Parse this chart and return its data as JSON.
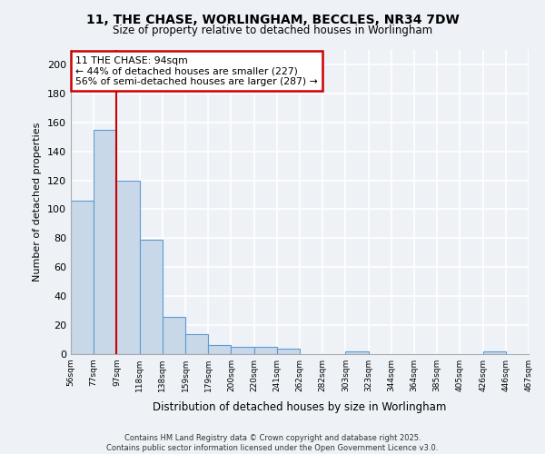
{
  "title_line1": "11, THE CHASE, WORLINGHAM, BECCLES, NR34 7DW",
  "title_line2": "Size of property relative to detached houses in Worlingham",
  "xlabel": "Distribution of detached houses by size in Worlingham",
  "ylabel": "Number of detached properties",
  "bar_values": [
    106,
    155,
    120,
    79,
    26,
    14,
    6,
    5,
    5,
    4,
    0,
    0,
    2,
    0,
    0,
    0,
    0,
    0,
    2,
    0
  ],
  "x_tick_labels": [
    "56sqm",
    "77sqm",
    "97sqm",
    "118sqm",
    "138sqm",
    "159sqm",
    "179sqm",
    "200sqm",
    "220sqm",
    "241sqm",
    "262sqm",
    "282sqm",
    "303sqm",
    "323sqm",
    "344sqm",
    "364sqm",
    "385sqm",
    "405sqm",
    "426sqm",
    "446sqm",
    "467sqm"
  ],
  "n_bars": 20,
  "bar_color": "#c8d8e8",
  "bar_edge_color": "#5b9bd5",
  "annotation_text": "11 THE CHASE: 94sqm\n← 44% of detached houses are smaller (227)\n56% of semi-detached houses are larger (287) →",
  "annotation_box_color": "#ffffff",
  "annotation_box_edge": "#cc0000",
  "vline_color": "#cc0000",
  "ylim": [
    0,
    210
  ],
  "yticks": [
    0,
    20,
    40,
    60,
    80,
    100,
    120,
    140,
    160,
    180,
    200
  ],
  "background_color": "#eef2f7",
  "grid_color": "#ffffff",
  "footer_line1": "Contains HM Land Registry data © Crown copyright and database right 2025.",
  "footer_line2": "Contains public sector information licensed under the Open Government Licence v3.0."
}
